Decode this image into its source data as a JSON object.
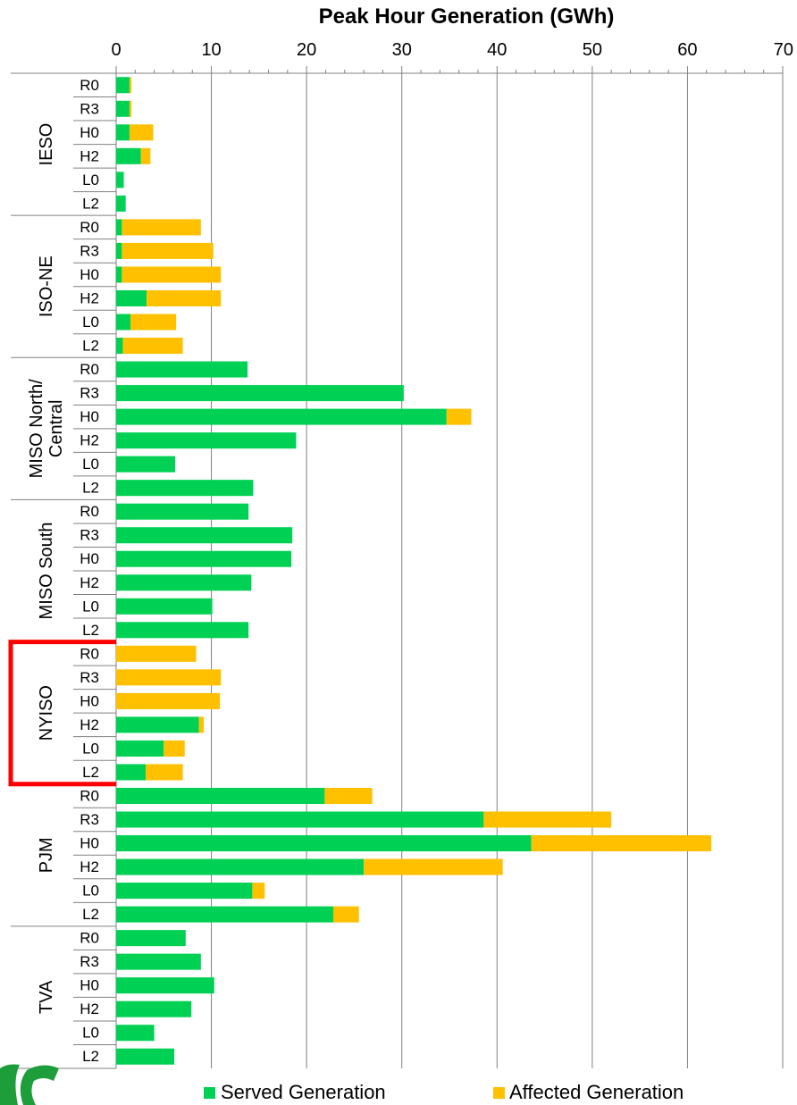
{
  "colors": {
    "served": "#00D154",
    "affected": "#FFC000",
    "grid": "#808080",
    "highlight": "#FF0000",
    "logo": "#1E9E3A"
  },
  "chart_data": {
    "type": "bar",
    "orientation": "horizontal",
    "stacked": true,
    "title": "Peak Hour Generation (GWh)",
    "xlim": [
      0,
      70
    ],
    "xticks": [
      0,
      10,
      20,
      30,
      40,
      50,
      60,
      70
    ],
    "grid": true,
    "legend_position": "bottom",
    "series_names": [
      "Served Generation",
      "Affected Generation"
    ],
    "highlighted_group": "NYISO",
    "groups": [
      {
        "name": "IESO",
        "lines": [
          "IESO"
        ],
        "categories": [
          "R0",
          "R3",
          "H0",
          "H2",
          "L0",
          "L2"
        ],
        "served": [
          1.4,
          1.4,
          1.4,
          2.6,
          0.8,
          1.0
        ],
        "affected": [
          0.2,
          0.2,
          2.5,
          1.0,
          0.0,
          0.0
        ]
      },
      {
        "name": "ISO-NE",
        "lines": [
          "ISO-NE"
        ],
        "categories": [
          "R0",
          "R3",
          "H0",
          "H2",
          "L0",
          "L2"
        ],
        "served": [
          0.6,
          0.6,
          0.6,
          3.2,
          1.5,
          0.7
        ],
        "affected": [
          8.3,
          9.6,
          10.4,
          7.8,
          4.8,
          6.3
        ]
      },
      {
        "name": "MISO North/ Central",
        "lines": [
          "MISO North/",
          "Central"
        ],
        "categories": [
          "R0",
          "R3",
          "H0",
          "H2",
          "L0",
          "L2"
        ],
        "served": [
          13.8,
          30.2,
          34.7,
          18.9,
          6.2,
          14.4
        ],
        "affected": [
          0.0,
          0.0,
          2.6,
          0.0,
          0.0,
          0.0
        ]
      },
      {
        "name": "MISO South",
        "lines": [
          "MISO South"
        ],
        "categories": [
          "R0",
          "R3",
          "H0",
          "H2",
          "L0",
          "L2"
        ],
        "served": [
          13.9,
          18.5,
          18.4,
          14.2,
          10.1,
          13.9
        ],
        "affected": [
          0,
          0,
          0,
          0,
          0,
          0
        ]
      },
      {
        "name": "NYISO",
        "lines": [
          "NYISO"
        ],
        "categories": [
          "R0",
          "R3",
          "H0",
          "H2",
          "L0",
          "L2"
        ],
        "served": [
          0.0,
          0.0,
          0.0,
          8.7,
          5.0,
          3.1
        ],
        "affected": [
          8.4,
          11.0,
          10.9,
          0.5,
          2.2,
          3.9
        ]
      },
      {
        "name": "PJM",
        "lines": [
          "PJM"
        ],
        "categories": [
          "R0",
          "R3",
          "H0",
          "H2",
          "L0",
          "L2"
        ],
        "served": [
          21.9,
          38.6,
          43.6,
          26.0,
          14.3,
          22.8
        ],
        "affected": [
          5.0,
          13.4,
          18.9,
          14.6,
          1.3,
          2.7
        ]
      },
      {
        "name": "TVA",
        "lines": [
          "TVA"
        ],
        "categories": [
          "R0",
          "R3",
          "H0",
          "H2",
          "L0",
          "L2"
        ],
        "served": [
          7.3,
          8.9,
          10.3,
          7.9,
          4.0,
          6.1
        ],
        "affected": [
          0,
          0,
          0,
          0,
          0,
          0
        ]
      }
    ]
  }
}
